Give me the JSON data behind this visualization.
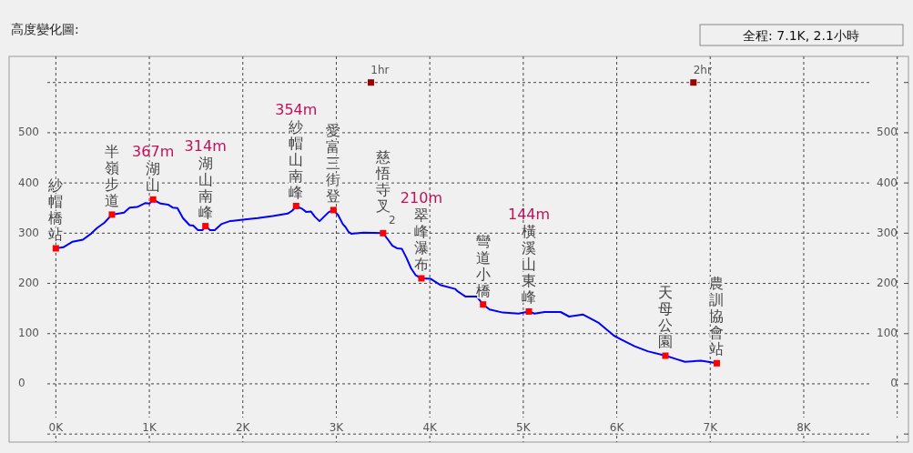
{
  "chart_data": {
    "type": "line",
    "title": "高度變化圖:",
    "subtitle": "全程: 7.1K, 2.1小時",
    "xlim": [
      -0.5,
      9.12
    ],
    "xticks": [
      {
        "value": 0,
        "label": "0K"
      },
      {
        "value": 1,
        "label": "1K"
      },
      {
        "value": 2,
        "label": "2K"
      },
      {
        "value": 3,
        "label": "3K"
      },
      {
        "value": 4,
        "label": "4K"
      },
      {
        "value": 5,
        "label": "5K"
      },
      {
        "value": 6,
        "label": "6K"
      },
      {
        "value": 7,
        "label": "7K"
      },
      {
        "value": 8,
        "label": "8K"
      },
      {
        "value": 9,
        "label": null
      }
    ],
    "ylim": [
      -116,
      652
    ],
    "yticks": [
      {
        "value": -100,
        "label": null
      },
      0,
      100,
      200,
      300,
      400,
      500,
      {
        "value": 600,
        "label": null
      }
    ],
    "y2lim": [
      -116,
      652
    ],
    "y2ticks": [
      {
        "value": -100,
        "label": null
      },
      0,
      100,
      200,
      300,
      400,
      500,
      {
        "value": 600,
        "label": null
      }
    ],
    "grid": true,
    "series": [
      {
        "type": "line",
        "color": "#0000ff",
        "x": [
          0,
          0.08,
          0.18,
          0.29,
          0.37,
          0.44,
          0.52,
          0.6,
          0.73,
          0.79,
          0.87,
          0.96,
          1.0,
          1.04,
          1.12,
          1.2,
          1.25,
          1.3,
          1.36,
          1.43,
          1.47,
          1.52,
          1.57,
          1.6,
          1.65,
          1.7,
          1.77,
          1.86,
          2.0,
          2.16,
          2.32,
          2.48,
          2.53,
          2.57,
          2.63,
          2.68,
          2.73,
          2.77,
          2.82,
          2.87,
          2.92,
          2.97,
          3.02,
          3.07,
          3.1,
          3.13,
          3.16,
          3.29,
          3.5,
          3.55,
          3.6,
          3.65,
          3.7,
          3.75,
          3.8,
          3.85,
          3.91,
          4.01,
          4.11,
          4.27,
          4.3,
          4.38,
          4.5,
          4.57,
          4.64,
          4.78,
          4.95,
          5.06,
          5.12,
          5.23,
          5.4,
          5.49,
          5.64,
          5.71,
          5.81,
          5.9,
          5.97,
          6.05,
          6.19,
          6.33,
          6.52,
          6.64,
          6.73,
          6.9,
          7.07
        ],
        "values": [
          270,
          272,
          283,
          287,
          298,
          310,
          321,
          337,
          341,
          351,
          352,
          360,
          359,
          367,
          359,
          357,
          351,
          350,
          330,
          316,
          315,
          306,
          306,
          314,
          306,
          306,
          318,
          324,
          327,
          330,
          334,
          339,
          345,
          354,
          349,
          342,
          343,
          333,
          324,
          333,
          342,
          346,
          336,
          318,
          312,
          303,
          299,
          301,
          300,
          288,
          275,
          270,
          269,
          251,
          230,
          216,
          210,
          209,
          197,
          189,
          184,
          174,
          174,
          158,
          148,
          142,
          140,
          144,
          140,
          143,
          143,
          134,
          138,
          131,
          121,
          107,
          96,
          88,
          75,
          65,
          56,
          49,
          44,
          46,
          41
        ]
      },
      {
        "type": "scatter",
        "color": "#ff0000",
        "marker": "square",
        "x": [
          0,
          0.6,
          1.04,
          1.6,
          2.57,
          2.97,
          3.5,
          3.91,
          4.57,
          5.06,
          6.52,
          7.07
        ],
        "values": [
          270,
          337,
          367,
          314,
          354,
          346,
          300,
          210,
          158,
          144,
          56,
          41
        ]
      },
      {
        "type": "scatter",
        "color": "#990000",
        "marker": "square",
        "x": [
          3.37,
          6.82
        ],
        "values": [
          600,
          600
        ]
      }
    ],
    "annotations": [
      {
        "text": "紗帽橋站",
        "x": 0,
        "y": 270
      },
      {
        "text": "半嶺步道",
        "x": 0.6,
        "y": 337
      },
      {
        "text": "湖山",
        "x": 1.04,
        "y": 367
      },
      "367m",
      {
        "text": "湖山南峰",
        "x": 1.6,
        "y": 314
      },
      "314m",
      {
        "text": "紗帽山南峰",
        "x": 2.57,
        "y": 354
      },
      "354m",
      {
        "text": "愛富三街登",
        "x": 2.97,
        "y": 346
      },
      {
        "text": "2",
        "x": 3.5,
        "y": 300
      },
      {
        "text": "慈悟寺叉",
        "x": 3.5,
        "y": 300
      },
      {
        "text": "翠峰瀑布",
        "x": 3.91,
        "y": 210
      },
      "210m",
      {
        "text": "彎道小橋",
        "x": 4.57,
        "y": 158
      },
      {
        "text": "橫溪山東峰",
        "x": 5.06,
        "y": 144
      },
      "144m",
      {
        "text": "天母公園",
        "x": 6.52,
        "y": 56
      },
      {
        "text": "農訓協會站",
        "x": 7.07,
        "y": 41
      },
      {
        "text": "1hr",
        "x": 3.37,
        "y": 600
      },
      {
        "text": "2hr",
        "x": 6.82,
        "y": 600
      }
    ]
  }
}
